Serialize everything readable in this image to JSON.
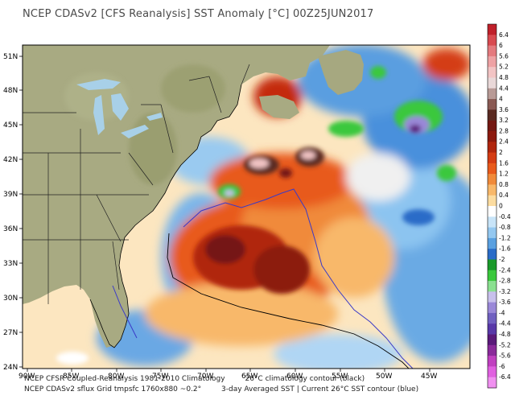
{
  "title": "NCEP CDASv2 [CFS Reanalysis] SST Anomaly [°C] 00Z25JUN2017",
  "lat_labels": [
    "51N",
    "48N",
    "45N",
    "42N",
    "39N",
    "36N",
    "33N",
    "30N",
    "27N",
    "24N"
  ],
  "lon_labels": [
    "90W",
    "85W",
    "80W",
    "75W",
    "70W",
    "65W",
    "60W",
    "55W",
    "50W",
    "45W"
  ],
  "footer": {
    "line1_left": "NCEP CFSR Coupled-Reanalysis 1981-2010 Climatology",
    "line1_right": "26°C climatology contour (black)",
    "line2_left": "NCEP CDASv2 sflux Grid tmpsfc 1760x880 ~0.2°",
    "line2_right": "3-day Averaged SST | Current 26°C SST contour (blue)"
  },
  "colorbar": {
    "labels": [
      "6.4",
      "6",
      "5.6",
      "5.2",
      "4.8",
      "4.4",
      "4",
      "3.6",
      "3.2",
      "2.8",
      "2.4",
      "2",
      "1.6",
      "1.2",
      "0.8",
      "0.4",
      "0",
      "-0.4",
      "-0.8",
      "-1.2",
      "-1.6",
      "-2",
      "-2.4",
      "-2.8",
      "-3.2",
      "-3.6",
      "-4",
      "-4.4",
      "-4.8",
      "-5.2",
      "-5.6",
      "-6",
      "-6.4"
    ],
    "colors": [
      "#c0202a",
      "#d84a50",
      "#e47a7e",
      "#eea2a4",
      "#f2c4c4",
      "#e9d8d8",
      "#b89a96",
      "#8a5a54",
      "#5a2a22",
      "#741812",
      "#8c1a0e",
      "#b0260e",
      "#d43c14",
      "#e85a1c",
      "#f08a3a",
      "#f8b86a",
      "#fcdca0",
      "#ffffff",
      "#c8e4f8",
      "#94c8f0",
      "#5aa0e0",
      "#2a6cc8",
      "#1a9a2a",
      "#3ac83c",
      "#8ae090",
      "#c8c0ec",
      "#9a88d8",
      "#7060c0",
      "#5838a8",
      "#5a1a7a",
      "#8a2a9a",
      "#c040c0",
      "#e060e0",
      "#f090f0"
    ],
    "zero_color": "#ffffff"
  },
  "features": {
    "climatology_contour": "26°C climatology contour (black)",
    "current_contour": "Current 26°C SST contour (blue)"
  },
  "colors": {
    "ocean_base": "#f8c88a",
    "land": "#a8a880",
    "coast": "#000000"
  }
}
